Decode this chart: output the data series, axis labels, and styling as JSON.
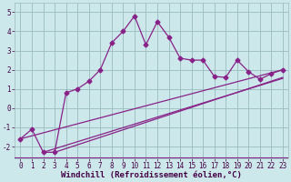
{
  "bg_color": "#cce8ea",
  "line_color": "#882288",
  "grid_color": "#99bbbd",
  "xlabel": "Windchill (Refroidissement éolien,°C)",
  "ylabel_ticks": [
    -2,
    -1,
    0,
    1,
    2,
    3,
    4,
    5
  ],
  "xlim": [
    -0.5,
    23.5
  ],
  "ylim": [
    -2.6,
    5.5
  ],
  "xticks": [
    0,
    1,
    2,
    3,
    4,
    5,
    6,
    7,
    8,
    9,
    10,
    11,
    12,
    13,
    14,
    15,
    16,
    17,
    18,
    19,
    20,
    21,
    22,
    23
  ],
  "line1_x": [
    0,
    1,
    2,
    3,
    4,
    5,
    6,
    7,
    8,
    9,
    10,
    11,
    12,
    13,
    14,
    15,
    16,
    17,
    18,
    19,
    20,
    21,
    22,
    23
  ],
  "line1_y": [
    -1.6,
    -1.1,
    -2.3,
    -2.3,
    0.8,
    1.0,
    1.4,
    2.0,
    3.4,
    4.0,
    4.8,
    3.3,
    4.5,
    3.7,
    2.6,
    2.5,
    2.5,
    1.65,
    1.6,
    2.5,
    1.9,
    1.5,
    1.8,
    2.0
  ],
  "line2_x": [
    0,
    23
  ],
  "line2_y": [
    -1.6,
    2.0
  ],
  "line3_x": [
    2,
    23
  ],
  "line3_y": [
    -2.3,
    1.55
  ],
  "line4_x": [
    3,
    23
  ],
  "line4_y": [
    -2.3,
    1.6
  ],
  "marker": "D",
  "marker_size": 2.5,
  "line_width": 0.9,
  "tick_fontsize": 5.5,
  "xlabel_fontsize": 6.5
}
